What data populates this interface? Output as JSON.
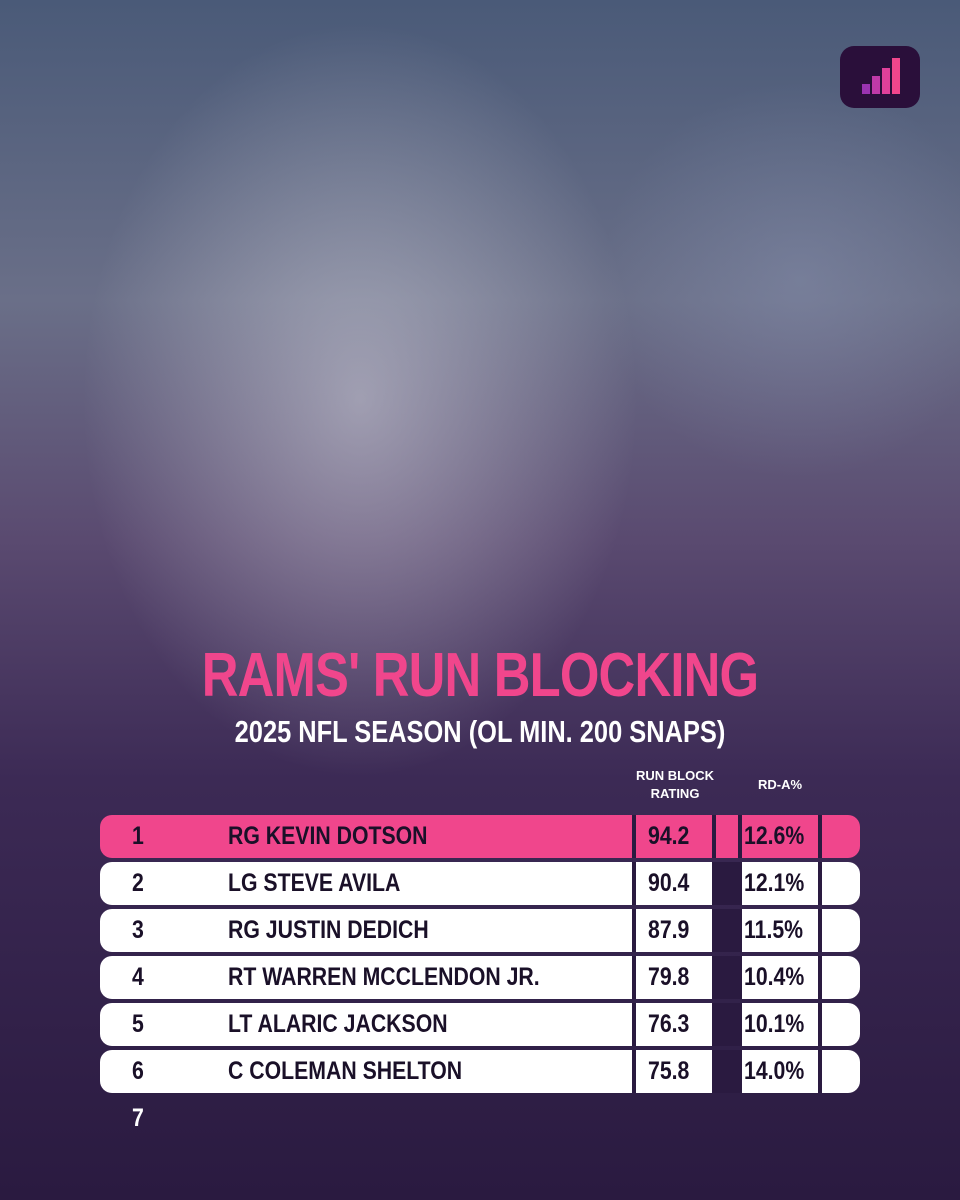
{
  "title": "RAMS' RUN BLOCKING",
  "subtitle": "2025 NFL SEASON (OL MIN. 200 SNAPS)",
  "table": {
    "columns": [
      "RUN BLOCK RATING",
      "RD-A%"
    ],
    "rows": [
      {
        "rank": "1",
        "name": "RG KEVIN DOTSON",
        "rating": "94.2",
        "rda": "12.6%"
      },
      {
        "rank": "2",
        "name": "LG STEVE AVILA",
        "rating": "90.4",
        "rda": "12.1%"
      },
      {
        "rank": "3",
        "name": "RG JUSTIN DEDICH",
        "rating": "87.9",
        "rda": "11.5%"
      },
      {
        "rank": "4",
        "name": "RT WARREN MCCLENDON JR.",
        "rating": "79.8",
        "rda": "10.4%"
      },
      {
        "rank": "5",
        "name": "LT ALARIC JACKSON",
        "rating": "76.3",
        "rda": "10.1%"
      },
      {
        "rank": "6",
        "name": "C COLEMAN SHELTON",
        "rating": "75.8",
        "rda": "14.0%"
      },
      {
        "rank": "7"
      }
    ]
  }
}
